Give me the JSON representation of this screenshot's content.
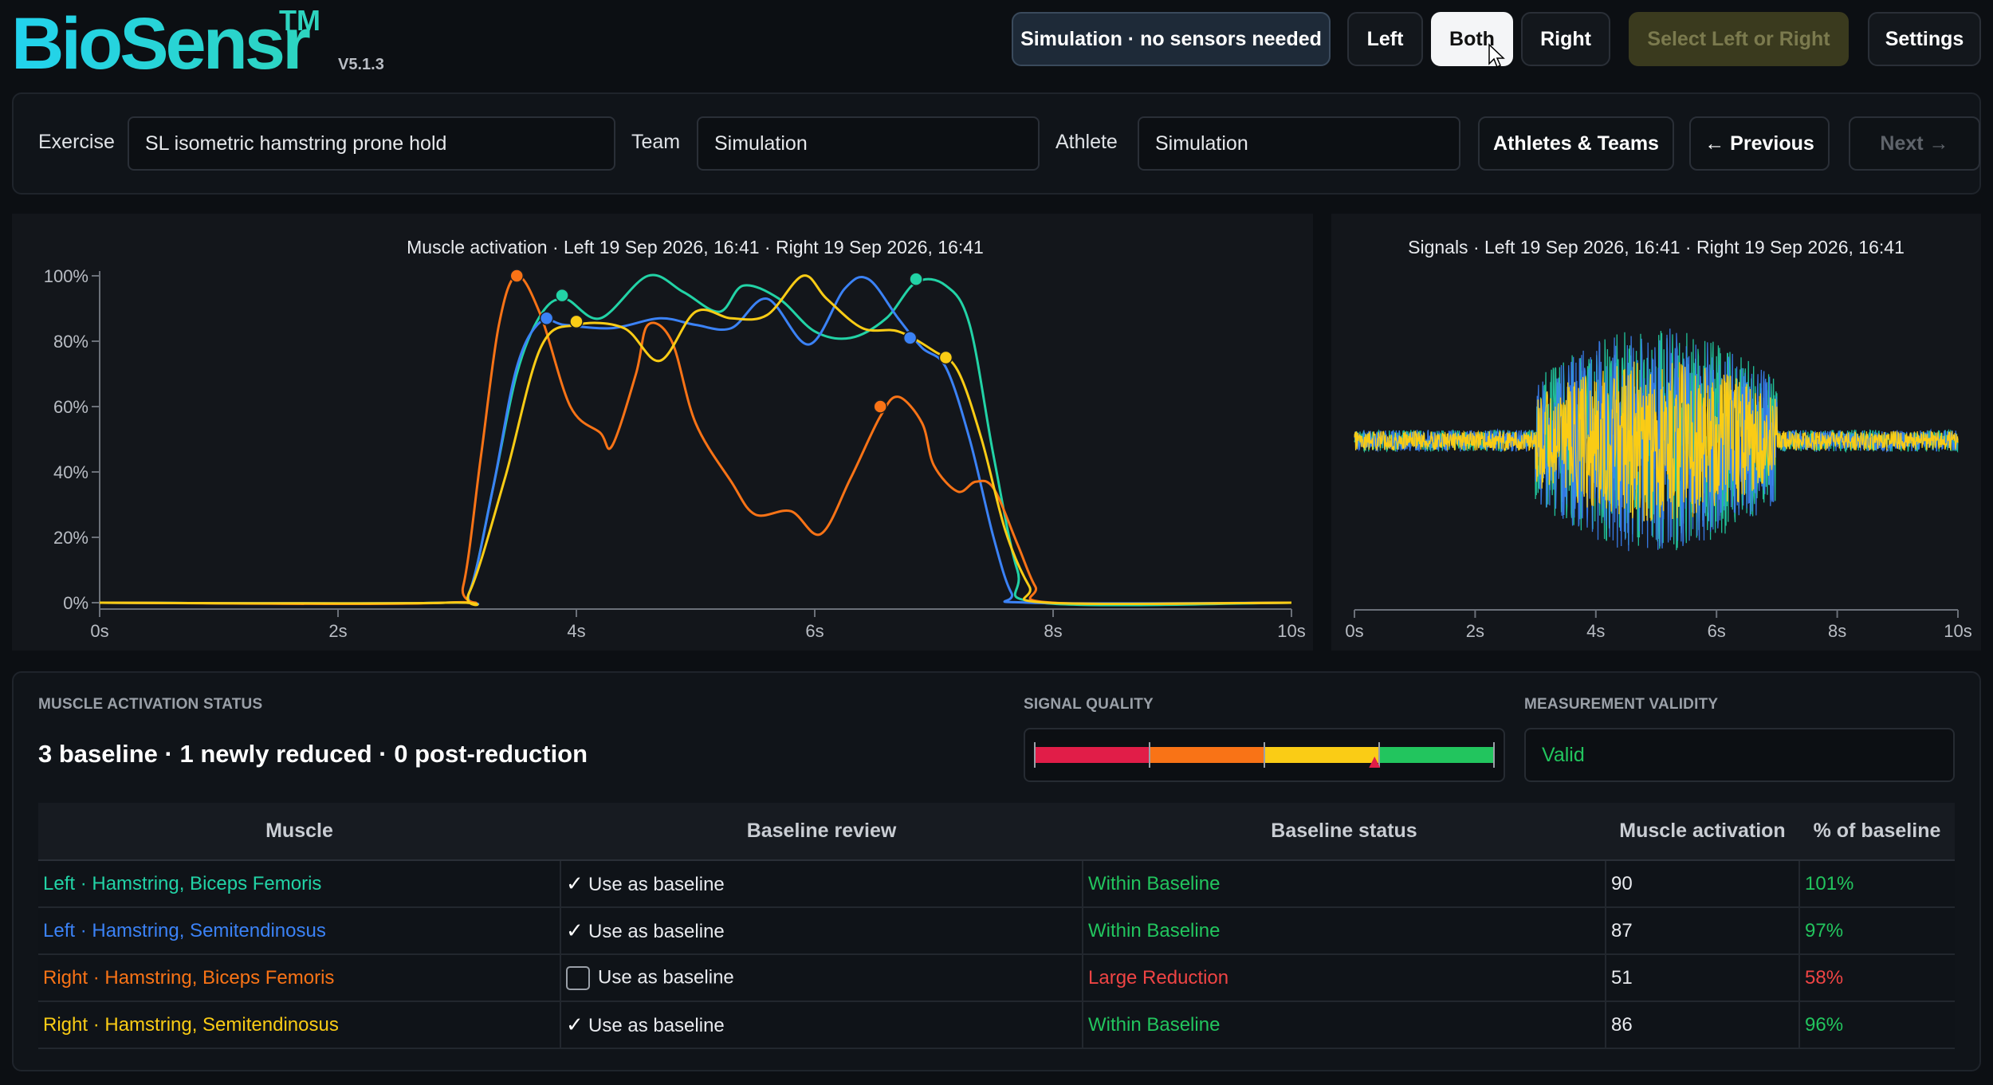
{
  "app": {
    "name": "BioSensr",
    "trademark": "TM",
    "version": "V5.1.3"
  },
  "header": {
    "simulation_label": "Simulation · no sensors needed",
    "left_label": "Left",
    "both_label": "Both",
    "right_label": "Right",
    "select_label": "Select Left or Right",
    "settings_label": "Settings",
    "active_side": "Both"
  },
  "toolbar": {
    "exercise_label": "Exercise",
    "exercise_value": "SL isometric hamstring prone hold",
    "team_label": "Team",
    "team_value": "Simulation",
    "athlete_label": "Athlete",
    "athlete_value": "Simulation",
    "athletes_teams_label": "Athletes & Teams",
    "previous_label": "← Previous",
    "next_label": "Next →"
  },
  "chart_data": [
    {
      "type": "line",
      "title": "Muscle activation · Left 19 Sep 2026, 16:41 · Right 19 Sep 2026, 16:41",
      "xlabel": "",
      "ylabel": "",
      "xlim": [
        0,
        10
      ],
      "ylim": [
        0,
        100
      ],
      "x_ticks": [
        "0s",
        "2s",
        "4s",
        "6s",
        "8s",
        "10s"
      ],
      "y_ticks": [
        "0%",
        "20%",
        "40%",
        "60%",
        "80%",
        "100%"
      ],
      "grid": false,
      "series": [
        {
          "name": "Left · Hamstring, Biceps Femoris",
          "color": "#22d3a6",
          "points": [
            [
              0,
              0
            ],
            [
              2.9,
              0
            ],
            [
              3.1,
              3
            ],
            [
              3.3,
              35
            ],
            [
              3.5,
              70
            ],
            [
              3.7,
              88
            ],
            [
              3.9,
              93
            ],
            [
              4.2,
              87
            ],
            [
              4.6,
              100
            ],
            [
              4.9,
              95
            ],
            [
              5.2,
              89
            ],
            [
              5.4,
              97
            ],
            [
              5.7,
              93
            ],
            [
              6.0,
              83
            ],
            [
              6.3,
              81
            ],
            [
              6.6,
              87
            ],
            [
              6.85,
              98
            ],
            [
              7.1,
              97
            ],
            [
              7.3,
              85
            ],
            [
              7.5,
              45
            ],
            [
              7.7,
              10
            ],
            [
              7.9,
              0
            ],
            [
              10,
              0
            ]
          ],
          "markers": [
            [
              3.88,
              94
            ],
            [
              6.85,
              99
            ]
          ]
        },
        {
          "name": "Left · Hamstring, Semitendinosus",
          "color": "#3b82f6",
          "points": [
            [
              0,
              0
            ],
            [
              2.9,
              0
            ],
            [
              3.1,
              3
            ],
            [
              3.3,
              35
            ],
            [
              3.5,
              72
            ],
            [
              3.7,
              86
            ],
            [
              3.9,
              85
            ],
            [
              4.3,
              84
            ],
            [
              4.7,
              87
            ],
            [
              5.0,
              85
            ],
            [
              5.3,
              84
            ],
            [
              5.6,
              93
            ],
            [
              5.95,
              79
            ],
            [
              6.25,
              96
            ],
            [
              6.45,
              99
            ],
            [
              6.7,
              87
            ],
            [
              6.9,
              78
            ],
            [
              7.1,
              72
            ],
            [
              7.3,
              50
            ],
            [
              7.5,
              20
            ],
            [
              7.65,
              3
            ],
            [
              7.8,
              0
            ],
            [
              10,
              0
            ]
          ],
          "markers": [
            [
              3.75,
              87
            ],
            [
              6.8,
              81
            ]
          ]
        },
        {
          "name": "Right · Hamstring, Biceps Femoris",
          "color": "#f97316",
          "points": [
            [
              0,
              0
            ],
            [
              2.9,
              0
            ],
            [
              3.05,
              5
            ],
            [
              3.2,
              45
            ],
            [
              3.35,
              85
            ],
            [
              3.5,
              100
            ],
            [
              3.7,
              88
            ],
            [
              3.95,
              60
            ],
            [
              4.2,
              52
            ],
            [
              4.3,
              48
            ],
            [
              4.5,
              70
            ],
            [
              4.6,
              85
            ],
            [
              4.8,
              80
            ],
            [
              5.0,
              55
            ],
            [
              5.3,
              37
            ],
            [
              5.5,
              27
            ],
            [
              5.8,
              28
            ],
            [
              6.05,
              21
            ],
            [
              6.3,
              38
            ],
            [
              6.55,
              57
            ],
            [
              6.7,
              63
            ],
            [
              6.9,
              55
            ],
            [
              7.0,
              42
            ],
            [
              7.2,
              34
            ],
            [
              7.35,
              37
            ],
            [
              7.5,
              35
            ],
            [
              7.7,
              18
            ],
            [
              7.85,
              5
            ],
            [
              8.0,
              0
            ],
            [
              10,
              0
            ]
          ],
          "markers": [
            [
              3.5,
              100
            ],
            [
              6.55,
              60
            ]
          ]
        },
        {
          "name": "Right · Hamstring, Semitendinosus",
          "color": "#facc15",
          "points": [
            [
              0,
              0
            ],
            [
              2.9,
              0
            ],
            [
              3.1,
              3
            ],
            [
              3.4,
              38
            ],
            [
              3.7,
              78
            ],
            [
              4.0,
              85
            ],
            [
              4.4,
              84
            ],
            [
              4.7,
              74
            ],
            [
              5.0,
              89
            ],
            [
              5.3,
              87
            ],
            [
              5.6,
              88
            ],
            [
              5.9,
              100
            ],
            [
              6.1,
              93
            ],
            [
              6.4,
              84
            ],
            [
              6.7,
              83
            ],
            [
              7.0,
              77
            ],
            [
              7.2,
              71
            ],
            [
              7.4,
              50
            ],
            [
              7.6,
              22
            ],
            [
              7.8,
              5
            ],
            [
              7.95,
              0
            ],
            [
              10,
              0
            ]
          ],
          "markers": [
            [
              4.0,
              86
            ],
            [
              7.1,
              75
            ]
          ]
        }
      ]
    },
    {
      "type": "area",
      "title": "Signals · Left 19 Sep 2026, 16:41 · Right 19 Sep 2026, 16:41",
      "xlabel": "",
      "ylabel": "",
      "xlim": [
        0,
        10
      ],
      "x_ticks": [
        "0s",
        "2s",
        "4s",
        "6s",
        "8s",
        "10s"
      ],
      "baseline_amplitude": 0.12,
      "burst": {
        "start": 3.0,
        "end": 7.0,
        "amplitude": 1.0
      },
      "series": [
        {
          "name": "Left · Hamstring, Biceps Femoris",
          "color": "#22d3a6"
        },
        {
          "name": "Left · Hamstring, Semitendinosus",
          "color": "#3b82f6"
        },
        {
          "name": "Right · Hamstring, Semitendinosus",
          "color": "#facc15"
        }
      ]
    }
  ],
  "status": {
    "activation_label": "MUSCLE ACTIVATION STATUS",
    "summary": "3 baseline · 1 newly reduced · 0 post-reduction",
    "signal_quality_label": "SIGNAL QUALITY",
    "signal_quality_value": 0.74,
    "validity_label": "MEASUREMENT VALIDITY",
    "validity_value": "Valid"
  },
  "table": {
    "headers": [
      "Muscle",
      "Baseline review",
      "Baseline status",
      "Muscle activation",
      "% of baseline"
    ],
    "rows": [
      {
        "muscle": "Left · Hamstring, Biceps Femoris",
        "muscle_color": "#22d3a6",
        "checked": true,
        "review": "Use as baseline",
        "status": "Within Baseline",
        "status_color": "#22c55e",
        "activation": "90",
        "pct": "101%",
        "pct_color": "#22c55e"
      },
      {
        "muscle": "Left · Hamstring, Semitendinosus",
        "muscle_color": "#3b82f6",
        "checked": true,
        "review": "Use as baseline",
        "status": "Within Baseline",
        "status_color": "#22c55e",
        "activation": "87",
        "pct": "97%",
        "pct_color": "#22c55e"
      },
      {
        "muscle": "Right · Hamstring, Biceps Femoris",
        "muscle_color": "#f97316",
        "checked": false,
        "review": "Use as baseline",
        "status": "Large Reduction",
        "status_color": "#ef4444",
        "activation": "51",
        "pct": "58%",
        "pct_color": "#ef4444"
      },
      {
        "muscle": "Right · Hamstring, Semitendinosus",
        "muscle_color": "#facc15",
        "checked": true,
        "review": "Use as baseline",
        "status": "Within Baseline",
        "status_color": "#22c55e",
        "activation": "86",
        "pct": "96%",
        "pct_color": "#22c55e"
      }
    ]
  }
}
